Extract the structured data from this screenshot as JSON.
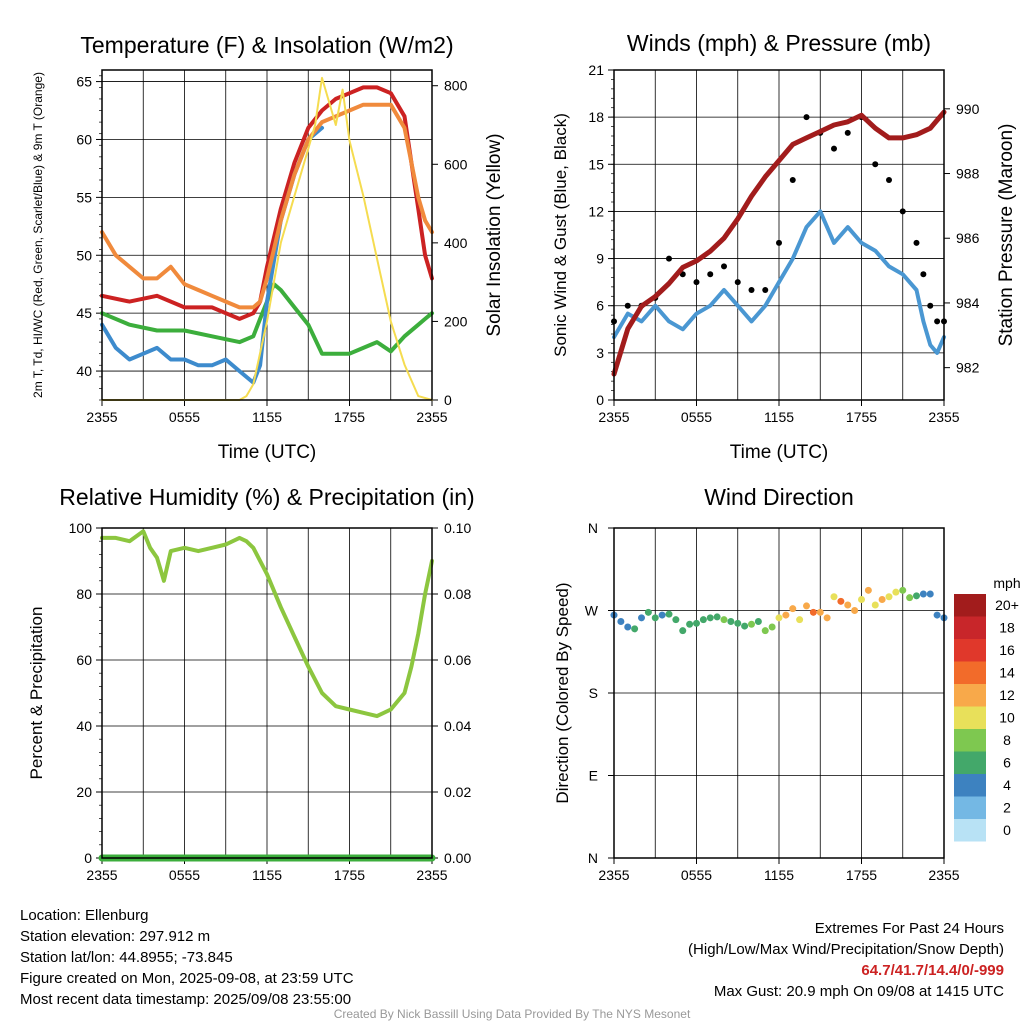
{
  "footer": {
    "location": "Location: Ellenburg",
    "elevation": "Station elevation: 297.912 m",
    "latlon": "Station lat/lon: 44.8955; -73.845",
    "created": "Figure created on Mon, 2025-09-08, at 23:59 UTC",
    "recent": "Most recent data timestamp: 2025/09/08 23:55:00",
    "extremes_title": "Extremes For Past 24 Hours",
    "extremes_subtitle": "(High/Low/Max Wind/Precipitation/Snow Depth)",
    "extremes_values": "64.7/41.7/14.4/0/-999",
    "max_gust": "Max Gust: 20.9 mph On 09/08 at 1415 UTC",
    "credit": "Created By Nick Bassill Using Data Provided By The NYS Mesonet"
  },
  "chart_data": [
    {
      "id": "temperature",
      "type": "line",
      "title": "Temperature (F) & Insolation (W/m2)",
      "xlabel": "Time (UTC)",
      "ylabel": "2m T, Td, HI/WC (Red, Green, Scarlet/Blue) & 9m T (Orange)",
      "y2label": "Solar Insolation (Yellow)",
      "x_ticks": [
        "2355",
        "0555",
        "1155",
        "1755",
        "2355"
      ],
      "ylim": [
        37.5,
        66
      ],
      "y_ticks": [
        40,
        45,
        50,
        55,
        60,
        65
      ],
      "y2lim": [
        0,
        840
      ],
      "y2_ticks": [
        0,
        200,
        400,
        600,
        800
      ],
      "colors": {
        "temp": "#cc2222",
        "dewpoint": "#3cae3c",
        "windchill": "#3d8bcd",
        "temp9m": "#f08a3c",
        "solar": "#f5dc50"
      },
      "series": [
        {
          "name": "2m T",
          "color_key": "temp",
          "axis": "left",
          "x": [
            0,
            2,
            4,
            6,
            8,
            9,
            10,
            11,
            11.5,
            12,
            13,
            14,
            15,
            16,
            17,
            18,
            19,
            20,
            21,
            22,
            22.5,
            23,
            23.5,
            24
          ],
          "values": [
            46.5,
            46,
            46.5,
            45.5,
            45.5,
            45,
            44.5,
            45,
            46,
            49,
            54,
            58,
            61,
            62.5,
            63.5,
            64,
            64.5,
            64.5,
            64,
            62,
            58,
            54,
            50,
            48
          ]
        },
        {
          "name": "2m Td",
          "color_key": "dewpoint",
          "axis": "left",
          "x": [
            0,
            2,
            4,
            6,
            8,
            10,
            11,
            11.5,
            12,
            12.5,
            13,
            14,
            15,
            16,
            17,
            18,
            19,
            20,
            21,
            22,
            23,
            23.5,
            24
          ],
          "values": [
            45,
            44,
            43.5,
            43.5,
            43,
            42.5,
            43,
            44.5,
            46,
            47.5,
            47,
            45.5,
            44,
            41.5,
            41.5,
            41.5,
            42,
            42.5,
            41.7,
            43,
            44,
            44.5,
            45
          ]
        },
        {
          "name": "WC",
          "color_key": "windchill",
          "axis": "left",
          "x": [
            0,
            1,
            2,
            3,
            4,
            5,
            6,
            7,
            8,
            9,
            10,
            11,
            11.5,
            12,
            13,
            14,
            15,
            16
          ],
          "values": [
            44,
            42,
            41,
            41.5,
            42,
            41,
            41,
            40.5,
            40.5,
            41,
            40,
            39,
            40.5,
            46,
            53,
            57,
            60,
            61
          ]
        },
        {
          "name": "9m T",
          "color_key": "temp9m",
          "axis": "left",
          "x": [
            0,
            1,
            2,
            3,
            4,
            5,
            6,
            7,
            8,
            9,
            10,
            11,
            11.5,
            12,
            13,
            14,
            15,
            16,
            17,
            18,
            19,
            20,
            21,
            22,
            22.5,
            23,
            23.5,
            24
          ],
          "values": [
            52,
            50,
            49,
            48,
            48,
            49,
            47.5,
            47,
            46.5,
            46,
            45.5,
            45.5,
            46,
            48,
            53,
            57,
            60,
            61.5,
            62,
            62.5,
            63,
            63,
            63,
            61,
            58,
            55,
            53,
            52
          ]
        },
        {
          "name": "Solar",
          "color_key": "solar",
          "axis": "right",
          "x": [
            0,
            5,
            10,
            10.5,
            11,
            12,
            13,
            14,
            15,
            15.5,
            16,
            16.5,
            17,
            17.5,
            18,
            19,
            20,
            21,
            22,
            23,
            24
          ],
          "values": [
            0,
            0,
            0,
            10,
            40,
            200,
            400,
            520,
            640,
            700,
            820,
            760,
            700,
            790,
            660,
            520,
            360,
            200,
            90,
            10,
            0
          ]
        }
      ]
    },
    {
      "id": "winds",
      "type": "line",
      "title": "Winds (mph) & Pressure (mb)",
      "xlabel": "Time (UTC)",
      "ylabel": "Sonic Wind & Gust (Blue, Black)",
      "y2label": "Station Pressure (Maroon)",
      "x_ticks": [
        "2355",
        "0555",
        "1155",
        "1755",
        "2355"
      ],
      "ylim": [
        0,
        21
      ],
      "y_ticks": [
        0,
        3,
        6,
        9,
        12,
        15,
        18,
        21
      ],
      "y2lim": [
        981,
        991.2
      ],
      "y2_ticks": [
        982,
        984,
        986,
        988,
        990
      ],
      "colors": {
        "wind": "#4a97d2",
        "gust": "#000000",
        "pressure": "#a21c1c"
      },
      "series": [
        {
          "name": "Sonic Wind",
          "color_key": "wind",
          "axis": "left",
          "x": [
            0,
            1,
            2,
            3,
            4,
            5,
            6,
            7,
            8,
            9,
            10,
            11,
            12,
            13,
            14,
            15,
            16,
            17,
            18,
            19,
            20,
            21,
            22,
            22.5,
            23,
            23.5,
            24
          ],
          "values": [
            4,
            5.5,
            5,
            6,
            5,
            4.5,
            5.5,
            6,
            7,
            6,
            5,
            6,
            7.5,
            9,
            11,
            12,
            10,
            11,
            10,
            9.5,
            8.5,
            8,
            7,
            5,
            3.5,
            3,
            4
          ]
        },
        {
          "name": "Gust",
          "color_key": "gust",
          "axis": "left",
          "x": [
            0,
            1,
            2,
            3,
            4,
            5,
            6,
            7,
            8,
            9,
            10,
            11,
            12,
            13,
            14,
            15,
            16,
            17,
            18,
            19,
            20,
            21,
            22,
            22.5,
            23,
            23.5,
            24
          ],
          "values": [
            5,
            6,
            6,
            6.5,
            9,
            8,
            7.5,
            8,
            8.5,
            7.5,
            7,
            7,
            10,
            14,
            18,
            17,
            16,
            17,
            18,
            15,
            14,
            12,
            10,
            8,
            6,
            5,
            5
          ]
        },
        {
          "name": "Pressure",
          "color_key": "pressure",
          "axis": "right",
          "x": [
            0,
            1,
            2,
            3,
            4,
            5,
            6,
            7,
            8,
            9,
            10,
            11,
            12,
            13,
            14,
            15,
            16,
            17,
            18,
            19,
            20,
            21,
            22,
            23,
            24
          ],
          "values": [
            981.8,
            983.2,
            983.9,
            984.2,
            984.6,
            985.1,
            985.3,
            985.6,
            986.0,
            986.6,
            987.3,
            987.9,
            988.4,
            988.9,
            989.1,
            989.3,
            989.5,
            989.6,
            989.8,
            989.4,
            989.1,
            989.1,
            989.2,
            989.4,
            989.9
          ]
        }
      ]
    },
    {
      "id": "humidity",
      "type": "line",
      "title": "Relative Humidity (%) & Precipitation (in)",
      "xlabel": "",
      "ylabel": "Percent & Precipitation",
      "x_ticks": [
        "2355",
        "0555",
        "1155",
        "1755",
        "2355"
      ],
      "ylim": [
        0,
        100
      ],
      "y_ticks": [
        0,
        20,
        40,
        60,
        80,
        100
      ],
      "y2lim": [
        0,
        0.1
      ],
      "y2_ticks": [
        "0.00",
        "0.02",
        "0.04",
        "0.06",
        "0.08",
        "0.10"
      ],
      "colors": {
        "rh": "#8cc63f",
        "precip": "#3cae3c"
      },
      "series": [
        {
          "name": "RH",
          "color_key": "rh",
          "axis": "left",
          "x": [
            0,
            1,
            2,
            3,
            3.5,
            4,
            4.5,
            5,
            6,
            7,
            8,
            9,
            10,
            10.5,
            11,
            12,
            13,
            14,
            15,
            16,
            17,
            18,
            19,
            20,
            21,
            22,
            22.5,
            23,
            23.5,
            24
          ],
          "values": [
            97,
            97,
            96,
            99,
            94,
            91,
            84,
            93,
            94,
            93,
            94,
            95,
            97,
            96,
            94,
            86,
            76,
            67,
            58,
            50,
            46,
            45,
            44,
            43,
            45,
            50,
            58,
            68,
            80,
            90
          ]
        },
        {
          "name": "Precipitation",
          "color_key": "precip",
          "axis": "right",
          "x": [
            0,
            24
          ],
          "values": [
            0,
            0
          ]
        }
      ]
    },
    {
      "id": "direction",
      "type": "scatter",
      "title": "Wind Direction",
      "xlabel": "",
      "ylabel": "Direction (Colored By Speed)",
      "x_ticks": [
        "2355",
        "0555",
        "1155",
        "1755",
        "2355"
      ],
      "y_ticks": [
        "N",
        "E",
        "S",
        "W",
        "N"
      ],
      "ylim": [
        0,
        360
      ],
      "legend": {
        "title": "mph",
        "labels": [
          "20+",
          "18",
          "16",
          "14",
          "12",
          "10",
          "8",
          "6",
          "4",
          "2",
          "0"
        ],
        "colors": [
          "#a21c1c",
          "#c8262a",
          "#e0382b",
          "#f26b2a",
          "#f8a94a",
          "#e8e05a",
          "#7ec850",
          "#43a86a",
          "#3d82c0",
          "#74b8e4",
          "#b8e2f5"
        ]
      },
      "points": {
        "x": [
          0,
          0.5,
          1,
          1.5,
          2,
          2.5,
          3,
          3.5,
          4,
          4.5,
          5,
          5.5,
          6,
          6.5,
          7,
          7.5,
          8,
          8.5,
          9,
          9.5,
          10,
          10.5,
          11,
          11.5,
          12,
          12.5,
          13,
          13.5,
          14,
          14.5,
          15,
          15.5,
          16,
          16.5,
          17,
          17.5,
          18,
          18.5,
          19,
          19.5,
          20,
          20.5,
          21,
          21.5,
          22,
          22.5,
          23,
          23.5,
          24
        ],
        "y": [
          265,
          258,
          252,
          250,
          262,
          268,
          262,
          265,
          266,
          260,
          248,
          255,
          256,
          260,
          262,
          263,
          260,
          258,
          256,
          253,
          255,
          258,
          248,
          252,
          262,
          265,
          272,
          260,
          275,
          268,
          268,
          262,
          285,
          280,
          276,
          270,
          282,
          292,
          276,
          282,
          285,
          290,
          292,
          284,
          286,
          288,
          288,
          265,
          262
        ],
        "speed": [
          4,
          4,
          4,
          5,
          4,
          6,
          5,
          4,
          6,
          6,
          5,
          6,
          6,
          6,
          6,
          5,
          7,
          6,
          6,
          6,
          7,
          6,
          7,
          8,
          10,
          12,
          11,
          9,
          12,
          13,
          11,
          12,
          10,
          13,
          11,
          12,
          10,
          11,
          9,
          12,
          10,
          9,
          8,
          7,
          6,
          4,
          3,
          3,
          4
        ]
      }
    }
  ]
}
